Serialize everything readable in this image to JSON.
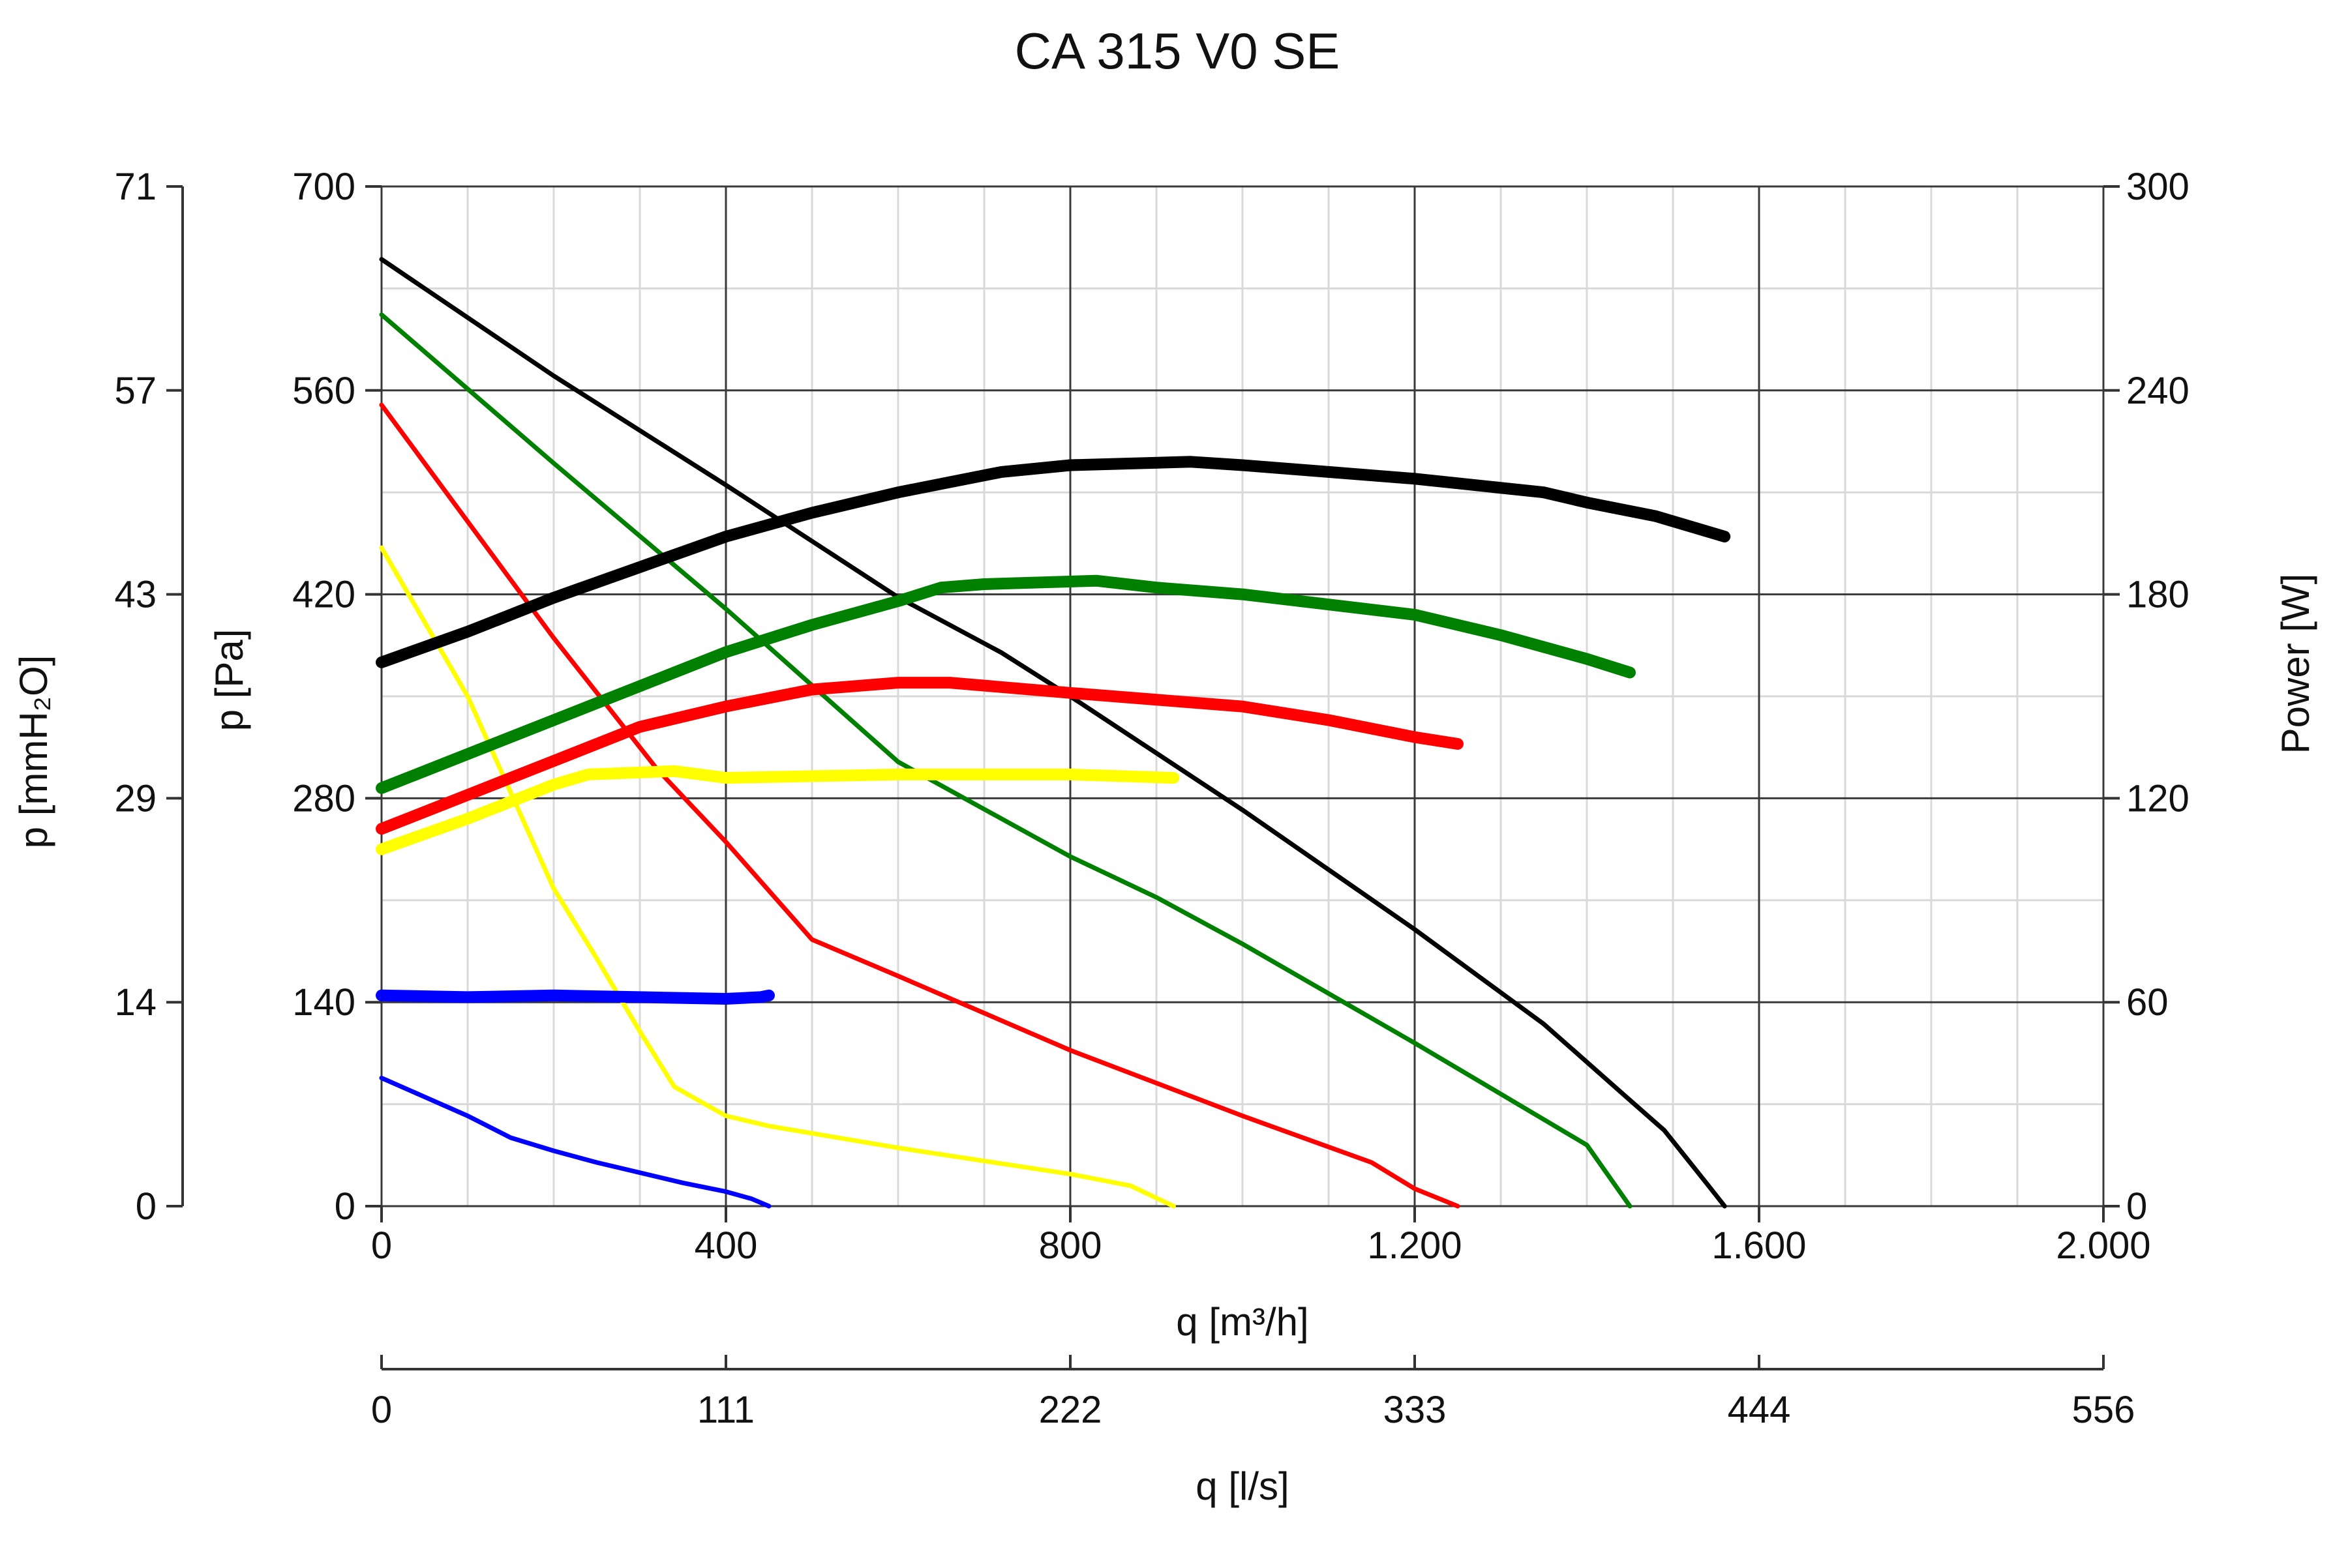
{
  "chart_data": {
    "type": "line",
    "title": "CA 315 V0 SE",
    "xlabel": "q [m³/h]",
    "xlabel2": "q [l/s]",
    "ylabel": "p [Pa]",
    "ylabel_alt": "p [mmH₂O]",
    "ylabel_right": "Power [W]",
    "xlim": [
      0,
      2000
    ],
    "ylim": [
      0,
      700
    ],
    "ylim_right": [
      0,
      300
    ],
    "x_ticks": [
      "0",
      "400",
      "800",
      "1.200",
      "1.600",
      "2.000"
    ],
    "y_ticks": [
      "0",
      "140",
      "280",
      "420",
      "560",
      "700"
    ],
    "y_alt_ticks": [
      "0",
      "14",
      "29",
      "43",
      "57",
      "71"
    ],
    "y_right_ticks": [
      "0",
      "60",
      "120",
      "180",
      "240",
      "300"
    ],
    "x2_ticks": [
      "0",
      "111",
      "222",
      "333",
      "444",
      "556"
    ],
    "grid": true,
    "series": [
      {
        "color": "#000000",
        "kind": "pressure",
        "points": [
          [
            0,
            650
          ],
          [
            200,
            570
          ],
          [
            400,
            495
          ],
          [
            600,
            418
          ],
          [
            720,
            380
          ],
          [
            800,
            350
          ],
          [
            1000,
            272
          ],
          [
            1200,
            190
          ],
          [
            1350,
            125
          ],
          [
            1440,
            78
          ],
          [
            1490,
            52
          ],
          [
            1540,
            15
          ],
          [
            1560,
            0
          ]
        ]
      },
      {
        "color": "#008000",
        "kind": "pressure",
        "points": [
          [
            0,
            612
          ],
          [
            200,
            510
          ],
          [
            400,
            410
          ],
          [
            600,
            305
          ],
          [
            800,
            240
          ],
          [
            900,
            212
          ],
          [
            1000,
            180
          ],
          [
            1200,
            112
          ],
          [
            1320,
            70
          ],
          [
            1400,
            42
          ],
          [
            1450,
            0
          ]
        ]
      },
      {
        "color": "#ff0000",
        "kind": "pressure",
        "points": [
          [
            0,
            550
          ],
          [
            200,
            390
          ],
          [
            320,
            300
          ],
          [
            400,
            250
          ],
          [
            500,
            183
          ],
          [
            600,
            158
          ],
          [
            800,
            107
          ],
          [
            1000,
            62
          ],
          [
            1150,
            30
          ],
          [
            1200,
            12
          ],
          [
            1250,
            0
          ]
        ]
      },
      {
        "color": "#ffff00",
        "kind": "pressure",
        "points": [
          [
            0,
            452
          ],
          [
            100,
            350
          ],
          [
            200,
            218
          ],
          [
            250,
            170
          ],
          [
            300,
            120
          ],
          [
            340,
            82
          ],
          [
            400,
            62
          ],
          [
            450,
            55
          ],
          [
            600,
            40
          ],
          [
            800,
            22
          ],
          [
            870,
            14
          ],
          [
            920,
            0
          ]
        ]
      },
      {
        "color": "#0000ff",
        "kind": "pressure",
        "points": [
          [
            0,
            88
          ],
          [
            50,
            75
          ],
          [
            100,
            62
          ],
          [
            150,
            47
          ],
          [
            200,
            38
          ],
          [
            250,
            30
          ],
          [
            300,
            23
          ],
          [
            350,
            16
          ],
          [
            400,
            10
          ],
          [
            430,
            5
          ],
          [
            450,
            0
          ]
        ]
      },
      {
        "color": "#000000",
        "kind": "power",
        "points": [
          [
            0,
            160
          ],
          [
            100,
            169
          ],
          [
            200,
            179
          ],
          [
            300,
            188
          ],
          [
            400,
            197
          ],
          [
            500,
            204
          ],
          [
            600,
            210
          ],
          [
            720,
            216
          ],
          [
            800,
            218
          ],
          [
            940,
            219
          ],
          [
            1000,
            218
          ],
          [
            1100,
            216
          ],
          [
            1200,
            214
          ],
          [
            1350,
            210
          ],
          [
            1400,
            207
          ],
          [
            1480,
            203
          ],
          [
            1560,
            197
          ]
        ]
      },
      {
        "color": "#008000",
        "kind": "power",
        "points": [
          [
            0,
            123
          ],
          [
            100,
            133
          ],
          [
            200,
            143
          ],
          [
            300,
            153
          ],
          [
            400,
            163
          ],
          [
            500,
            171
          ],
          [
            600,
            178
          ],
          [
            650,
            182
          ],
          [
            700,
            183
          ],
          [
            830,
            184
          ],
          [
            900,
            182
          ],
          [
            1000,
            180
          ],
          [
            1100,
            177
          ],
          [
            1200,
            174
          ],
          [
            1300,
            168
          ],
          [
            1400,
            161
          ],
          [
            1450,
            157
          ]
        ]
      },
      {
        "color": "#ff0000",
        "kind": "power",
        "points": [
          [
            0,
            111
          ],
          [
            100,
            121
          ],
          [
            200,
            131
          ],
          [
            300,
            141
          ],
          [
            400,
            147
          ],
          [
            500,
            152
          ],
          [
            600,
            154
          ],
          [
            660,
            154
          ],
          [
            800,
            151
          ],
          [
            1000,
            147
          ],
          [
            1100,
            143
          ],
          [
            1200,
            138
          ],
          [
            1250,
            136
          ]
        ]
      },
      {
        "color": "#ffff00",
        "kind": "power",
        "points": [
          [
            0,
            105
          ],
          [
            100,
            114
          ],
          [
            200,
            124
          ],
          [
            240,
            127
          ],
          [
            340,
            128
          ],
          [
            400,
            126
          ],
          [
            600,
            127
          ],
          [
            800,
            127
          ],
          [
            920,
            126
          ]
        ]
      },
      {
        "color": "#0000ff",
        "kind": "power",
        "points": [
          [
            0,
            62
          ],
          [
            100,
            61.5
          ],
          [
            200,
            62
          ],
          [
            300,
            61.5
          ],
          [
            400,
            61
          ],
          [
            440,
            61.5
          ],
          [
            450,
            62
          ]
        ]
      }
    ]
  }
}
